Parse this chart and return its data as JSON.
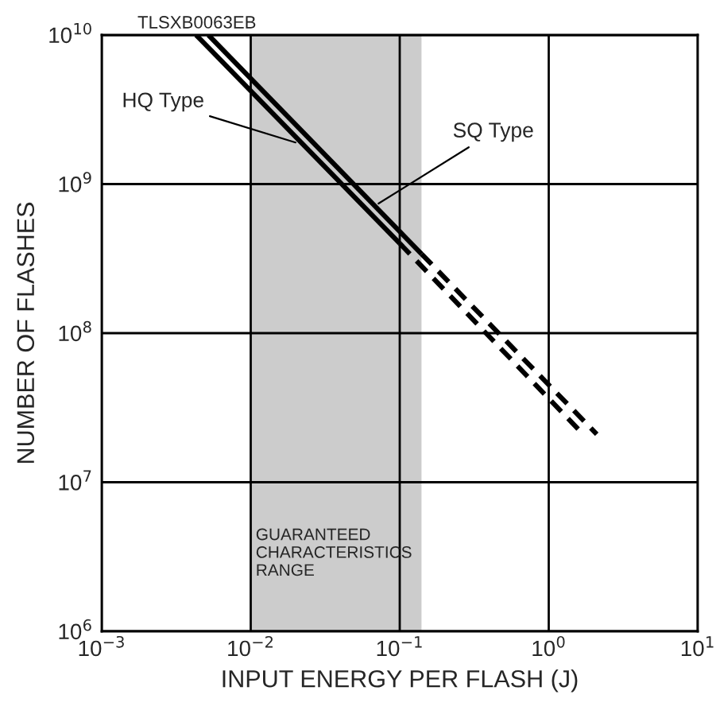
{
  "chart_data": {
    "type": "line",
    "xlabel": "INPUT ENERGY PER FLASH (J)",
    "ylabel": "NUMBER OF FLASHES",
    "log": "xy",
    "grid": true,
    "xlim": [
      0.001,
      10
    ],
    "ylim": [
      1000000,
      10000000000
    ],
    "xticks": [
      {
        "value": 0.001,
        "label": "10$^{−3}$"
      },
      {
        "value": 0.01,
        "label": "10$^{−2}$"
      },
      {
        "value": 0.1,
        "label": "10$^{−1}$"
      },
      {
        "value": 1,
        "label": "10$^{0}$"
      },
      {
        "value": 10,
        "label": "10$^{1}$"
      }
    ],
    "yticks": [
      {
        "value": 1000000,
        "label": "10$^{6}$"
      },
      {
        "value": 10000000,
        "label": "10$^{7}$"
      },
      {
        "value": 100000000,
        "label": "10$^{8}$"
      },
      {
        "value": 1000000000,
        "label": "10$^{9}$"
      },
      {
        "value": 10000000000,
        "label": "10$^{10}$"
      }
    ],
    "series": [
      {
        "color": "#000000",
        "line_style": "solid",
        "x": [
          0.0043,
          0.1
        ],
        "values": [
          10000000000,
          400000000
        ]
      },
      {
        "color": "#000000",
        "line_style": "dashed",
        "x": [
          0.1,
          1.7
        ],
        "values": [
          400000000,
          21000000
        ]
      },
      {
        "color": "#000000",
        "line_style": "solid",
        "x": [
          0.0052,
          0.14
        ],
        "values": [
          10000000000,
          340000000
        ]
      },
      {
        "color": "#000000",
        "line_style": "dashed",
        "x": [
          0.14,
          2.1
        ],
        "values": [
          340000000,
          21000000
        ]
      }
    ],
    "bands": [
      {
        "axis": "x",
        "from": 0.01,
        "to": 0.14,
        "label": "GUARANTEED\nCHARACTERISTICS\nRANGE",
        "color": "#cccccc"
      }
    ],
    "annotations": [
      {
        "text": "HQ Type",
        "x": 0.02,
        "y": 1900000000
      },
      {
        "text": "SQ Type",
        "x": 0.072,
        "y": 740000000
      },
      "TLSXB0063EB"
    ]
  }
}
